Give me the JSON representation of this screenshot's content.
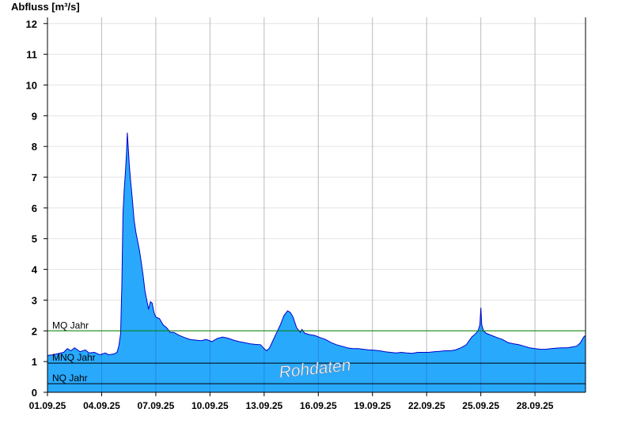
{
  "chart_data": {
    "type": "area",
    "title": "",
    "xlabel": "",
    "ylabel": "Abfluss [m³/s]",
    "ylim": [
      0,
      12.2
    ],
    "xlim": [
      0,
      29.8
    ],
    "x_unit": "days since 01.09.25 00:00",
    "grid": true,
    "yticks": [
      0,
      1,
      2,
      3,
      4,
      5,
      6,
      7,
      8,
      9,
      10,
      11,
      12
    ],
    "xtick_labels": [
      "01.09.25",
      "04.09.25",
      "07.09.25",
      "10.09.25",
      "13.09.25",
      "16.09.25",
      "19.09.25",
      "22.09.25",
      "25.09.25",
      "28.09.25"
    ],
    "xtick_values": [
      0,
      3,
      6,
      9,
      12,
      15,
      18,
      21,
      24,
      27
    ],
    "series": [
      {
        "name": "Abfluss",
        "color": "#29a9fc",
        "line_color": "#0000cc",
        "points": [
          [
            0.0,
            1.2
          ],
          [
            0.3,
            1.22
          ],
          [
            0.6,
            1.26
          ],
          [
            0.9,
            1.3
          ],
          [
            1.1,
            1.42
          ],
          [
            1.3,
            1.35
          ],
          [
            1.5,
            1.45
          ],
          [
            1.8,
            1.32
          ],
          [
            2.1,
            1.38
          ],
          [
            2.3,
            1.28
          ],
          [
            2.6,
            1.3
          ],
          [
            2.9,
            1.22
          ],
          [
            3.2,
            1.28
          ],
          [
            3.4,
            1.22
          ],
          [
            3.7,
            1.25
          ],
          [
            3.85,
            1.3
          ],
          [
            3.95,
            1.5
          ],
          [
            4.05,
            1.9
          ],
          [
            4.12,
            3.5
          ],
          [
            4.18,
            5.8
          ],
          [
            4.25,
            6.6
          ],
          [
            4.32,
            7.2
          ],
          [
            4.38,
            7.8
          ],
          [
            4.42,
            8.45
          ],
          [
            4.47,
            8.0
          ],
          [
            4.53,
            7.4
          ],
          [
            4.6,
            6.9
          ],
          [
            4.7,
            6.3
          ],
          [
            4.8,
            5.6
          ],
          [
            4.9,
            5.2
          ],
          [
            5.0,
            4.9
          ],
          [
            5.1,
            4.6
          ],
          [
            5.2,
            4.2
          ],
          [
            5.3,
            3.8
          ],
          [
            5.4,
            3.3
          ],
          [
            5.5,
            3.0
          ],
          [
            5.6,
            2.7
          ],
          [
            5.7,
            2.95
          ],
          [
            5.8,
            2.9
          ],
          [
            5.9,
            2.6
          ],
          [
            6.0,
            2.45
          ],
          [
            6.2,
            2.4
          ],
          [
            6.4,
            2.2
          ],
          [
            6.6,
            2.1
          ],
          [
            6.8,
            1.95
          ],
          [
            7.0,
            1.95
          ],
          [
            7.3,
            1.85
          ],
          [
            7.6,
            1.78
          ],
          [
            7.9,
            1.72
          ],
          [
            8.2,
            1.7
          ],
          [
            8.5,
            1.68
          ],
          [
            8.8,
            1.72
          ],
          [
            9.1,
            1.65
          ],
          [
            9.4,
            1.75
          ],
          [
            9.7,
            1.8
          ],
          [
            10.0,
            1.76
          ],
          [
            10.3,
            1.7
          ],
          [
            10.6,
            1.65
          ],
          [
            10.9,
            1.62
          ],
          [
            11.2,
            1.58
          ],
          [
            11.5,
            1.56
          ],
          [
            11.8,
            1.55
          ],
          [
            12.0,
            1.42
          ],
          [
            12.15,
            1.35
          ],
          [
            12.3,
            1.45
          ],
          [
            12.5,
            1.7
          ],
          [
            12.7,
            1.95
          ],
          [
            12.9,
            2.2
          ],
          [
            13.1,
            2.5
          ],
          [
            13.3,
            2.65
          ],
          [
            13.45,
            2.6
          ],
          [
            13.6,
            2.45
          ],
          [
            13.8,
            2.1
          ],
          [
            14.0,
            1.95
          ],
          [
            14.1,
            2.05
          ],
          [
            14.25,
            1.92
          ],
          [
            14.5,
            1.88
          ],
          [
            14.8,
            1.85
          ],
          [
            15.1,
            1.78
          ],
          [
            15.4,
            1.72
          ],
          [
            15.7,
            1.62
          ],
          [
            16.0,
            1.55
          ],
          [
            16.3,
            1.5
          ],
          [
            16.6,
            1.45
          ],
          [
            16.9,
            1.42
          ],
          [
            17.2,
            1.42
          ],
          [
            17.5,
            1.4
          ],
          [
            17.8,
            1.38
          ],
          [
            18.1,
            1.37
          ],
          [
            18.4,
            1.35
          ],
          [
            18.7,
            1.32
          ],
          [
            19.0,
            1.3
          ],
          [
            19.3,
            1.28
          ],
          [
            19.6,
            1.3
          ],
          [
            19.9,
            1.28
          ],
          [
            20.2,
            1.27
          ],
          [
            20.5,
            1.3
          ],
          [
            20.8,
            1.3
          ],
          [
            21.1,
            1.3
          ],
          [
            21.4,
            1.32
          ],
          [
            21.7,
            1.33
          ],
          [
            22.0,
            1.35
          ],
          [
            22.3,
            1.35
          ],
          [
            22.6,
            1.38
          ],
          [
            22.9,
            1.45
          ],
          [
            23.2,
            1.55
          ],
          [
            23.5,
            1.8
          ],
          [
            23.7,
            1.9
          ],
          [
            23.85,
            2.0
          ],
          [
            23.95,
            2.2
          ],
          [
            24.0,
            2.75
          ],
          [
            24.05,
            2.2
          ],
          [
            24.15,
            2.0
          ],
          [
            24.3,
            1.92
          ],
          [
            24.6,
            1.85
          ],
          [
            24.9,
            1.78
          ],
          [
            25.2,
            1.72
          ],
          [
            25.5,
            1.62
          ],
          [
            25.8,
            1.58
          ],
          [
            26.1,
            1.55
          ],
          [
            26.4,
            1.5
          ],
          [
            26.7,
            1.45
          ],
          [
            27.0,
            1.42
          ],
          [
            27.3,
            1.4
          ],
          [
            27.6,
            1.4
          ],
          [
            27.9,
            1.42
          ],
          [
            28.2,
            1.44
          ],
          [
            28.5,
            1.45
          ],
          [
            28.8,
            1.45
          ],
          [
            29.1,
            1.48
          ],
          [
            29.3,
            1.5
          ],
          [
            29.5,
            1.6
          ],
          [
            29.7,
            1.8
          ],
          [
            29.8,
            1.85
          ]
        ]
      }
    ],
    "reference_lines": [
      {
        "label": "MQ Jahr",
        "value": 2.0,
        "color": "#008000"
      },
      {
        "label": "MNQ Jahr",
        "value": 0.95,
        "color": "#000000"
      },
      {
        "label": "NQ Jahr",
        "value": 0.28,
        "color": "#000000"
      }
    ],
    "watermark": "Rohdaten"
  }
}
